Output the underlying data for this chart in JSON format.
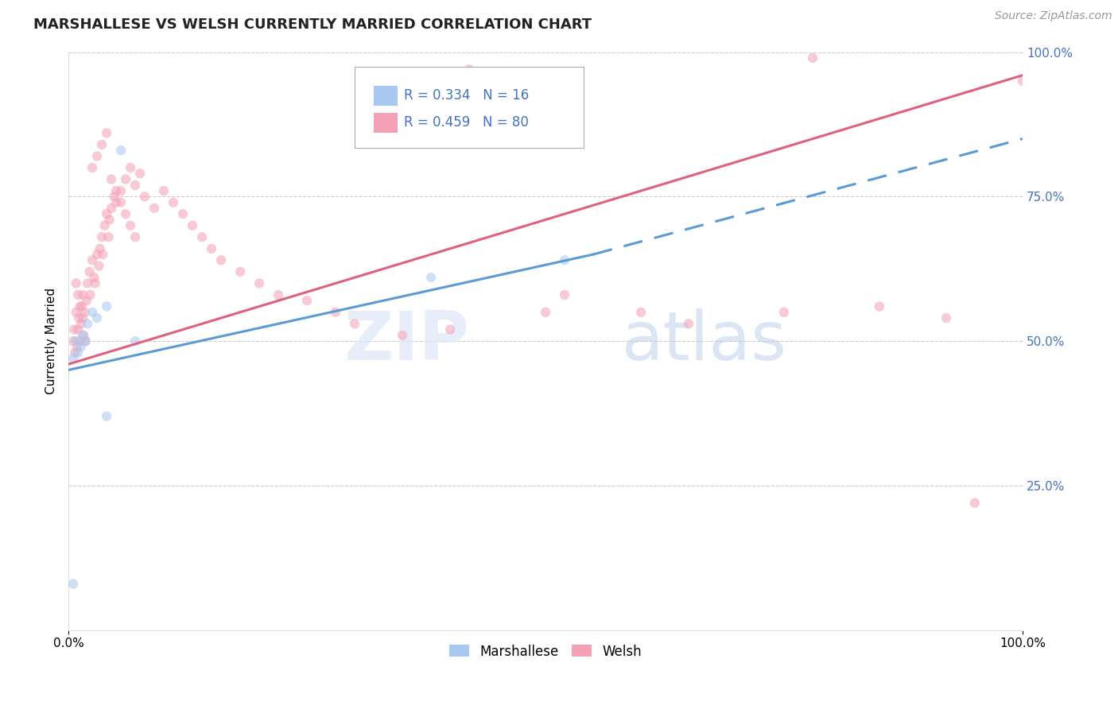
{
  "title": "MARSHALLESE VS WELSH CURRENTLY MARRIED CORRELATION CHART",
  "source": "Source: ZipAtlas.com",
  "ylabel": "Currently Married",
  "watermark_zip": "ZIP",
  "watermark_atlas": "atlas",
  "marshallese_R": 0.334,
  "marshallese_N": 16,
  "welsh_R": 0.459,
  "welsh_N": 80,
  "xlim": [
    0,
    1
  ],
  "ylim": [
    0,
    1
  ],
  "grid_color": "#cccccc",
  "bg_color": "#ffffff",
  "marshallese_color": "#a8c8f0",
  "welsh_color": "#f4a0b5",
  "marshallese_line_color": "#5b9bd5",
  "welsh_line_color": "#e06080",
  "right_tick_color": "#4472c4",
  "title_fontsize": 13,
  "axis_label_fontsize": 11,
  "tick_fontsize": 11,
  "source_fontsize": 10,
  "marker_size": 80,
  "marker_alpha": 0.55,
  "line_width": 2.2,
  "marsh_x": [
    0.005,
    0.008,
    0.01,
    0.013,
    0.015,
    0.018,
    0.02,
    0.025,
    0.03,
    0.04,
    0.055,
    0.07,
    0.38,
    0.52,
    0.04,
    0.005
  ],
  "marsh_y": [
    0.47,
    0.5,
    0.48,
    0.49,
    0.51,
    0.5,
    0.53,
    0.55,
    0.54,
    0.56,
    0.83,
    0.5,
    0.61,
    0.64,
    0.37,
    0.08
  ],
  "welsh_x": [
    0.005,
    0.006,
    0.007,
    0.008,
    0.009,
    0.01,
    0.011,
    0.012,
    0.013,
    0.014,
    0.015,
    0.016,
    0.017,
    0.018,
    0.019,
    0.02,
    0.022,
    0.023,
    0.025,
    0.027,
    0.028,
    0.03,
    0.032,
    0.033,
    0.035,
    0.036,
    0.038,
    0.04,
    0.042,
    0.043,
    0.045,
    0.048,
    0.05,
    0.055,
    0.06,
    0.065,
    0.07,
    0.075,
    0.08,
    0.09,
    0.1,
    0.11,
    0.12,
    0.13,
    0.14,
    0.15,
    0.16,
    0.18,
    0.2,
    0.22,
    0.25,
    0.28,
    0.3,
    0.35,
    0.4,
    0.42,
    0.5,
    0.52,
    0.6,
    0.65,
    0.75,
    0.78,
    0.85,
    0.92,
    0.95,
    1.0,
    0.025,
    0.03,
    0.035,
    0.04,
    0.045,
    0.05,
    0.055,
    0.06,
    0.065,
    0.07,
    0.008,
    0.01,
    0.012,
    0.015
  ],
  "welsh_y": [
    0.5,
    0.52,
    0.48,
    0.55,
    0.49,
    0.52,
    0.54,
    0.5,
    0.53,
    0.56,
    0.58,
    0.51,
    0.55,
    0.5,
    0.57,
    0.6,
    0.62,
    0.58,
    0.64,
    0.61,
    0.6,
    0.65,
    0.63,
    0.66,
    0.68,
    0.65,
    0.7,
    0.72,
    0.68,
    0.71,
    0.73,
    0.75,
    0.74,
    0.76,
    0.78,
    0.8,
    0.77,
    0.79,
    0.75,
    0.73,
    0.76,
    0.74,
    0.72,
    0.7,
    0.68,
    0.66,
    0.64,
    0.62,
    0.6,
    0.58,
    0.57,
    0.55,
    0.53,
    0.51,
    0.52,
    0.97,
    0.55,
    0.58,
    0.55,
    0.53,
    0.55,
    0.99,
    0.56,
    0.54,
    0.22,
    0.95,
    0.8,
    0.82,
    0.84,
    0.86,
    0.78,
    0.76,
    0.74,
    0.72,
    0.7,
    0.68,
    0.6,
    0.58,
    0.56,
    0.54
  ],
  "welsh_line_x0": 0.0,
  "welsh_line_y0": 0.46,
  "welsh_line_x1": 1.0,
  "welsh_line_y1": 0.96,
  "marsh_line_solid_x0": 0.0,
  "marsh_line_solid_y0": 0.45,
  "marsh_line_solid_x1": 0.55,
  "marsh_line_solid_y1": 0.65,
  "marsh_line_dash_x0": 0.55,
  "marsh_line_dash_y0": 0.65,
  "marsh_line_dash_x1": 1.0,
  "marsh_line_dash_y1": 0.85
}
